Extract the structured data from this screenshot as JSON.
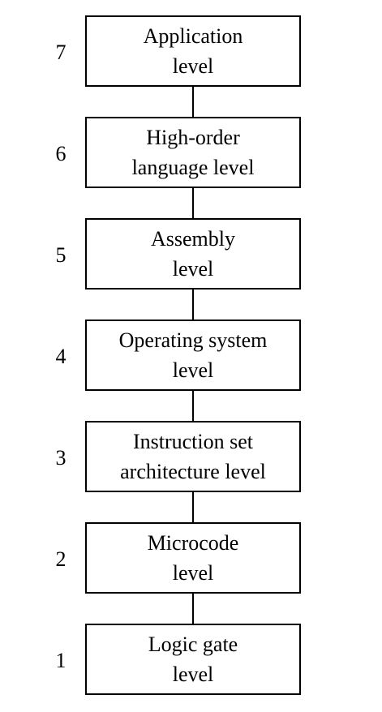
{
  "levels": [
    {
      "number": "7",
      "line1": "Application",
      "line2": "level"
    },
    {
      "number": "6",
      "line1": "High-order",
      "line2": "language level"
    },
    {
      "number": "5",
      "line1": "Assembly",
      "line2": "level"
    },
    {
      "number": "4",
      "line1": "Operating system",
      "line2": "level"
    },
    {
      "number": "3",
      "line1": "Instruction set",
      "line2": "architecture level"
    },
    {
      "number": "2",
      "line1": "Microcode",
      "line2": "level"
    },
    {
      "number": "1",
      "line1": "Logic gate",
      "line2": "level"
    }
  ],
  "colors": {
    "line": "#000000",
    "background": "#ffffff"
  }
}
